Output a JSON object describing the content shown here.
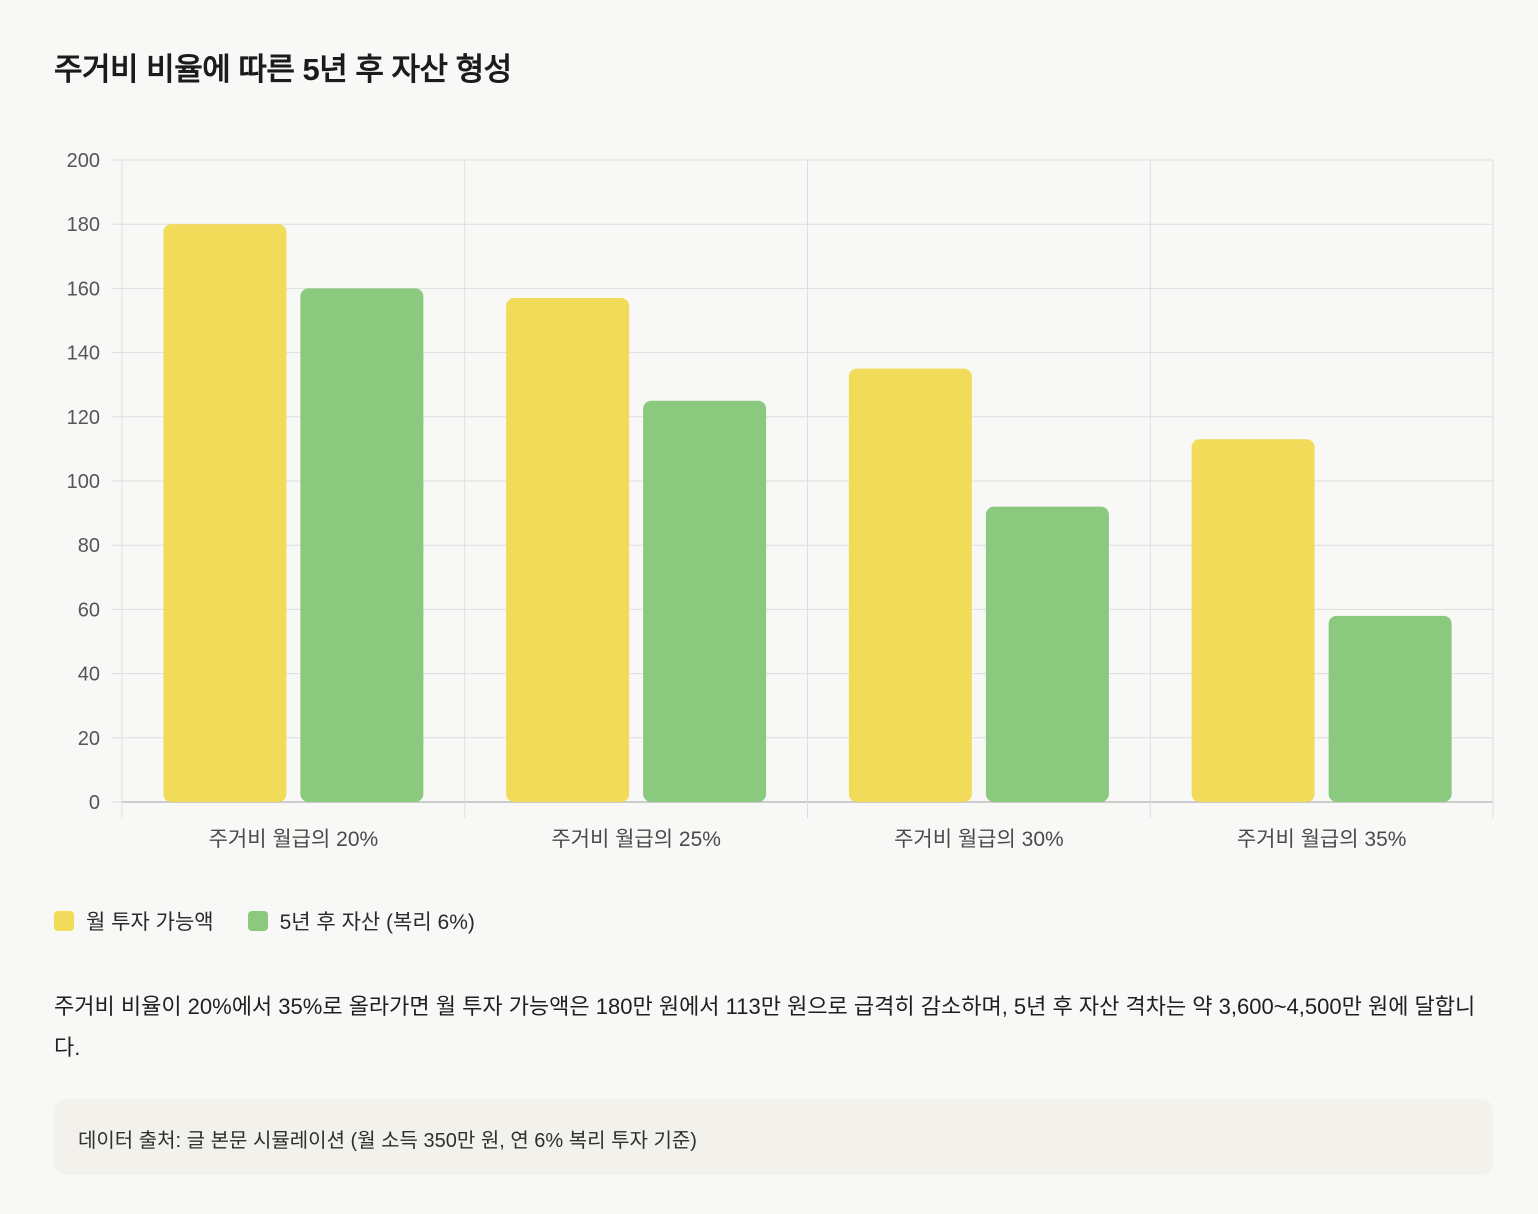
{
  "title": "주거비 비율에 따른 5년 후 자산 형성",
  "chart_data": {
    "type": "bar",
    "categories": [
      "주거비 월급의 20%",
      "주거비 월급의 25%",
      "주거비 월급의 30%",
      "주거비 월급의 35%"
    ],
    "series": [
      {
        "name": "월 투자 가능액",
        "values": [
          180,
          157,
          135,
          113
        ],
        "color": "#f2db58"
      },
      {
        "name": "5년 후 자산 (복리 6%)",
        "values": [
          160,
          125,
          92,
          58
        ],
        "color": "#8bc97e"
      }
    ],
    "ylim": [
      0,
      200
    ],
    "yticks": [
      "0",
      "20",
      "40",
      "60",
      "80",
      "100",
      "120",
      "140",
      "160",
      "180",
      "200"
    ],
    "grid": true,
    "legend_position": "bottom-left"
  },
  "description": "주거비 비율이 20%에서 35%로 올라가면 월 투자 가능액은 180만 원에서 113만 원으로 급격히 감소하며, 5년 후 자산 격차는 약 3,600~4,500만 원에 달합니다.",
  "source": "데이터 출처: 글 본문 시뮬레이션 (월 소득 350만 원, 연 6% 복리 투자 기준)"
}
